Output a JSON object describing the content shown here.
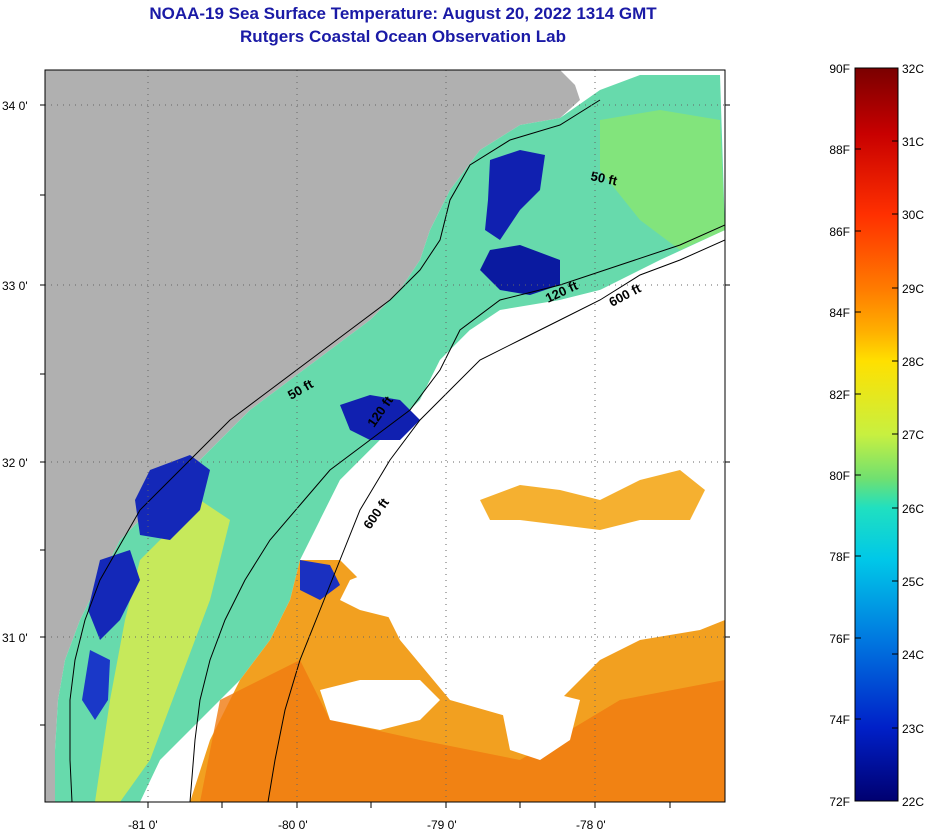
{
  "title_line1": "NOAA-19 Sea Surface Temperature:  August 20, 2022 1314 GMT",
  "title_line2": "Rutgers Coastal Ocean Observation Lab",
  "map": {
    "lat_labels": [
      "34 0'",
      "33 0'",
      "32 0'",
      "31 0'"
    ],
    "lon_labels": [
      "-81 0'",
      "-80 0'",
      "-79 0'",
      "-78 0'"
    ],
    "contours": [
      "50 ft",
      "120 ft",
      "600 ft",
      "50 ft",
      "120 ft",
      "600 ft"
    ]
  },
  "colorbar": {
    "f_labels": [
      "90F",
      "88F",
      "86F",
      "84F",
      "82F",
      "80F",
      "78F",
      "76F",
      "74F",
      "72F"
    ],
    "c_labels": [
      "32C",
      "31C",
      "30C",
      "29C",
      "28C",
      "27C",
      "26C",
      "25C",
      "24C",
      "23C",
      "22C"
    ],
    "gradient": [
      "#7a0000",
      "#c80000",
      "#ff3000",
      "#ff7a00",
      "#ffb000",
      "#ffe000",
      "#c8f040",
      "#70e070",
      "#20e0c0",
      "#00c8e8",
      "#0078e0",
      "#0020c8",
      "#000070"
    ]
  }
}
